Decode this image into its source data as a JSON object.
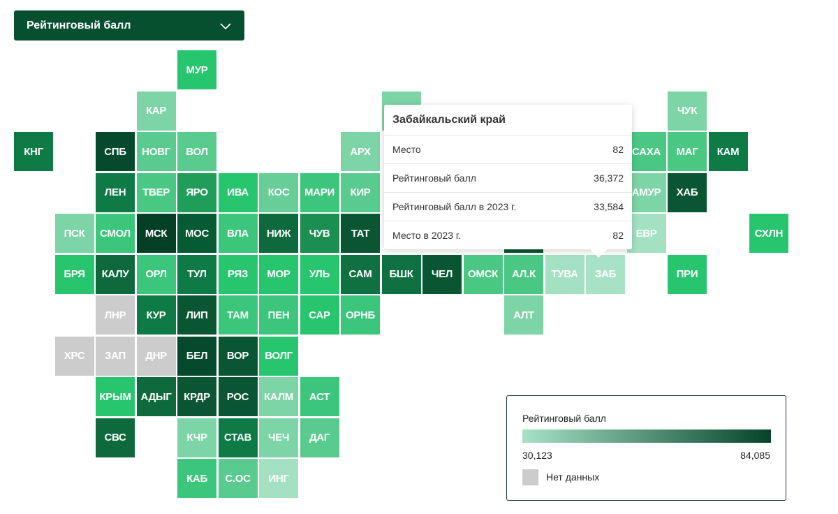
{
  "metric_select": {
    "label": "Рейтинговый балл",
    "icon": "chevron-down-icon"
  },
  "colors": {
    "scale_min": "#a8e2c4",
    "scale_max": "#06432a",
    "no_data": "#cccccc",
    "text_on_tile": "#ffffff"
  },
  "regions": [
    {
      "code": "МУР",
      "col": 4,
      "row": 0,
      "color": "#28c56f"
    },
    {
      "code": "КАР",
      "col": 3,
      "row": 1,
      "color": "#7dd4a6"
    },
    {
      "code": "КНГ",
      "col": 0,
      "row": 2,
      "color": "#0e7a45"
    },
    {
      "code": "СПБ",
      "col": 2,
      "row": 2,
      "color": "#054a2c"
    },
    {
      "code": "НОВГ",
      "col": 3,
      "row": 2,
      "color": "#5acb8e"
    },
    {
      "code": "ВОЛ",
      "col": 4,
      "row": 2,
      "color": "#5acb8e"
    },
    {
      "code": "ЛЕН",
      "col": 2,
      "row": 3,
      "color": "#0e7a45"
    },
    {
      "code": "ТВЕР",
      "col": 3,
      "row": 3,
      "color": "#4ac883"
    },
    {
      "code": "ЯРО",
      "col": 4,
      "row": 3,
      "color": "#1f9e5a"
    },
    {
      "code": "ИВА",
      "col": 5,
      "row": 3,
      "color": "#28c56f"
    },
    {
      "code": "КОС",
      "col": 6,
      "row": 3,
      "color": "#67ce97"
    },
    {
      "code": "МАРИ",
      "col": 7,
      "row": 3,
      "color": "#3cc67c"
    },
    {
      "code": "ПСК",
      "col": 1,
      "row": 4,
      "color": "#7dd4a6"
    },
    {
      "code": "СМОЛ",
      "col": 2,
      "row": 4,
      "color": "#3cc67c"
    },
    {
      "code": "МСК",
      "col": 3,
      "row": 4,
      "color": "#053f26"
    },
    {
      "code": "МОС",
      "col": 4,
      "row": 4,
      "color": "#065a34"
    },
    {
      "code": "ВЛА",
      "col": 5,
      "row": 4,
      "color": "#3cc67c"
    },
    {
      "code": "НИЖ",
      "col": 6,
      "row": 4,
      "color": "#0e6a3c"
    },
    {
      "code": "ЧУВ",
      "col": 7,
      "row": 4,
      "color": "#1c8e52"
    },
    {
      "code": "ТАТ",
      "col": 8,
      "row": 4,
      "color": "#0a5633"
    },
    {
      "code": "БРЯ",
      "col": 1,
      "row": 5,
      "color": "#28c56f"
    },
    {
      "code": "КАЛУ",
      "col": 2,
      "row": 5,
      "color": "#0e6a3c"
    },
    {
      "code": "ОРЛ",
      "col": 3,
      "row": 5,
      "color": "#3cc67c"
    },
    {
      "code": "ТУЛ",
      "col": 4,
      "row": 5,
      "color": "#0e7a45"
    },
    {
      "code": "РЯЗ",
      "col": 5,
      "row": 5,
      "color": "#28c56f"
    },
    {
      "code": "МОР",
      "col": 6,
      "row": 5,
      "color": "#28c56f"
    },
    {
      "code": "УЛЬ",
      "col": 7,
      "row": 5,
      "color": "#28c56f"
    },
    {
      "code": "САМ",
      "col": 8,
      "row": 5,
      "color": "#0f7142"
    },
    {
      "code": "БШК",
      "col": 9,
      "row": 5,
      "color": "#0f7142"
    },
    {
      "code": "ЧЕЛ",
      "col": 10,
      "row": 5,
      "color": "#0a5633"
    },
    {
      "code": "ОМСК",
      "col": 11,
      "row": 5,
      "color": "#4ac883"
    },
    {
      "code": "АЛ.К",
      "col": 12,
      "row": 5,
      "color": "#4ac883"
    },
    {
      "code": "ТУВА",
      "col": 13,
      "row": 5,
      "color": "#a4e0c2"
    },
    {
      "code": "ЗАБ",
      "col": 14,
      "row": 5,
      "color": "#a8e2c4"
    },
    {
      "code": "ЛНР",
      "col": 2,
      "row": 6,
      "color": "#cccccc"
    },
    {
      "code": "КУР",
      "col": 3,
      "row": 6,
      "color": "#0e7a45"
    },
    {
      "code": "ЛИП",
      "col": 4,
      "row": 6,
      "color": "#0a5633"
    },
    {
      "code": "ТАМ",
      "col": 5,
      "row": 6,
      "color": "#3cc67c"
    },
    {
      "code": "ПЕН",
      "col": 6,
      "row": 6,
      "color": "#3cc67c"
    },
    {
      "code": "САР",
      "col": 7,
      "row": 6,
      "color": "#28c56f"
    },
    {
      "code": "ОРНБ",
      "col": 8,
      "row": 6,
      "color": "#3cc67c"
    },
    {
      "code": "АЛТ",
      "col": 12,
      "row": 6,
      "color": "#7dd4a6"
    },
    {
      "code": "ХРС",
      "col": 1,
      "row": 7,
      "color": "#cccccc"
    },
    {
      "code": "ЗАП",
      "col": 2,
      "row": 7,
      "color": "#cccccc"
    },
    {
      "code": "ДНР",
      "col": 3,
      "row": 7,
      "color": "#cccccc"
    },
    {
      "code": "БЕЛ",
      "col": 4,
      "row": 7,
      "color": "#054a2c"
    },
    {
      "code": "ВОР",
      "col": 5,
      "row": 7,
      "color": "#0a5633"
    },
    {
      "code": "ВОЛГ",
      "col": 6,
      "row": 7,
      "color": "#28c56f"
    },
    {
      "code": "КРЫМ",
      "col": 2,
      "row": 8,
      "color": "#28c56f"
    },
    {
      "code": "АДЫГ",
      "col": 3,
      "row": 8,
      "color": "#0e6a3c"
    },
    {
      "code": "КРДР",
      "col": 4,
      "row": 8,
      "color": "#0a5633"
    },
    {
      "code": "РОС",
      "col": 5,
      "row": 8,
      "color": "#0a5633"
    },
    {
      "code": "КАЛМ",
      "col": 6,
      "row": 8,
      "color": "#7dd4a6"
    },
    {
      "code": "АСТ",
      "col": 7,
      "row": 8,
      "color": "#3cc67c"
    },
    {
      "code": "СВС",
      "col": 2,
      "row": 9,
      "color": "#0e6a3c"
    },
    {
      "code": "КЧР",
      "col": 4,
      "row": 9,
      "color": "#7dd4a6"
    },
    {
      "code": "СТАВ",
      "col": 5,
      "row": 9,
      "color": "#0e7a45"
    },
    {
      "code": "ЧЕЧ",
      "col": 6,
      "row": 9,
      "color": "#7dd4a6"
    },
    {
      "code": "ДАГ",
      "col": 7,
      "row": 9,
      "color": "#5acb8e"
    },
    {
      "code": "КАБ",
      "col": 4,
      "row": 10,
      "color": "#3cc67c"
    },
    {
      "code": "С.ОС",
      "col": 5,
      "row": 10,
      "color": "#5acb8e"
    },
    {
      "code": "ИНГ",
      "col": 6,
      "row": 10,
      "color": "#a4e0c2"
    },
    {
      "code": "АРХ",
      "col": 8,
      "row": 2,
      "color": "#7dd4a6"
    },
    {
      "code": "КИР",
      "col": 8,
      "row": 3,
      "color": "#5acb8e"
    },
    {
      "code": "",
      "col": 9,
      "row": 1,
      "color": "#7dd4a6"
    },
    {
      "code": "",
      "col": 12,
      "row": 4,
      "color": "#0a5633"
    },
    {
      "code": "ЧУК",
      "col": 16,
      "row": 1,
      "color": "#7dd4a6"
    },
    {
      "code": "САХА",
      "col": 15,
      "row": 2,
      "color": "#4ac883"
    },
    {
      "code": "МАГ",
      "col": 16,
      "row": 2,
      "color": "#4ac883"
    },
    {
      "code": "КАМ",
      "col": 17,
      "row": 2,
      "color": "#0e7a45"
    },
    {
      "code": "АМУР",
      "col": 15,
      "row": 3,
      "color": "#7dd4a6"
    },
    {
      "code": "ХАБ",
      "col": 16,
      "row": 3,
      "color": "#0a5633"
    },
    {
      "code": "ЕВР",
      "col": 15,
      "row": 4,
      "color": "#a4e0c2"
    },
    {
      "code": "СХЛН",
      "col": 18,
      "row": 4,
      "color": "#28c56f"
    },
    {
      "code": "ПРИ",
      "col": 16,
      "row": 5,
      "color": "#28c56f"
    }
  ],
  "tooltip": {
    "title": "Забайкальский край",
    "rows": [
      {
        "label": "Место",
        "value": "82"
      },
      {
        "label": "Рейтинговый балл",
        "value": "36,372"
      },
      {
        "label": "Рейтинговый балл в 2023 г.",
        "value": "33,584"
      },
      {
        "label": "Место в 2023 г.",
        "value": "82"
      }
    ]
  },
  "legend": {
    "title": "Рейтинговый балл",
    "min_label": "30,123",
    "max_label": "84,085",
    "no_data_label": "Нет данных"
  }
}
